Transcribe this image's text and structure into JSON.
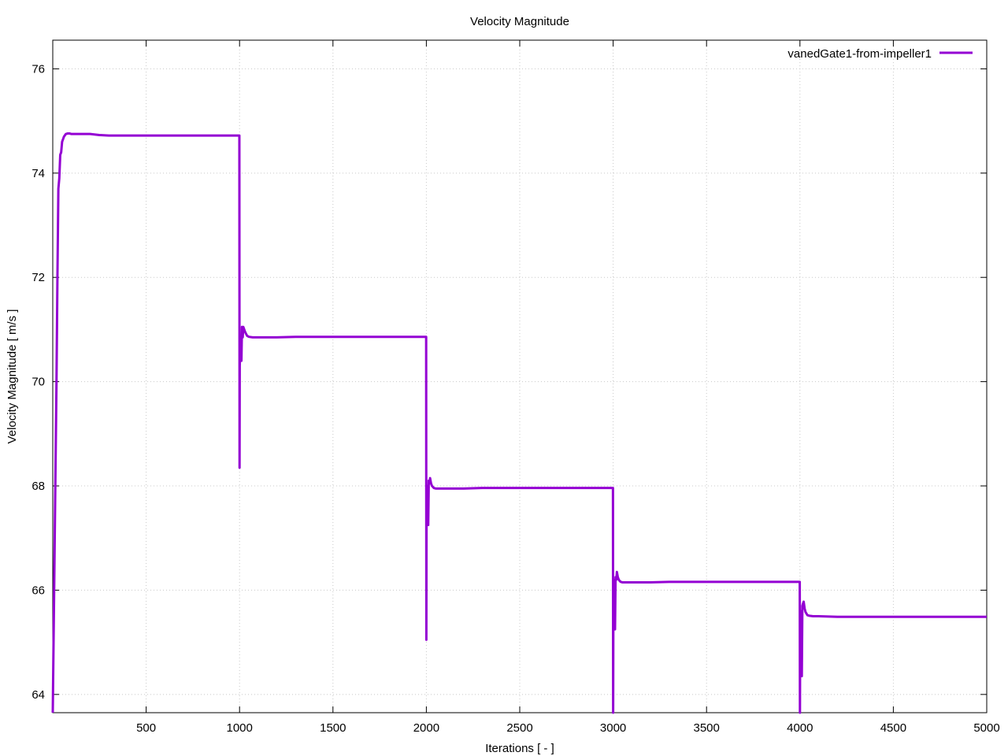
{
  "chart_data": {
    "type": "line",
    "title": "Velocity Magnitude",
    "xlabel": "Iterations [ - ]",
    "ylabel": "Velocity Magnitude [ m/s ]",
    "xlim": [
      0,
      5000
    ],
    "ylim": [
      63.65,
      76.55
    ],
    "xticks": [
      500,
      1000,
      1500,
      2000,
      2500,
      3000,
      3500,
      4000,
      4500,
      5000
    ],
    "yticks": [
      64,
      66,
      68,
      70,
      72,
      74,
      76
    ],
    "grid": true,
    "legend_position": "top-right",
    "colors": {
      "series": "#9400d3",
      "grid": "#c8c8c8",
      "axis": "#000000"
    },
    "series": [
      {
        "name": "vanedGate1-from-impeller1",
        "x": [
          0,
          20,
          25,
          30,
          35,
          40,
          45,
          50,
          55,
          60,
          70,
          80,
          90,
          100,
          120,
          150,
          200,
          250,
          300,
          400,
          500,
          600,
          700,
          800,
          900,
          999,
          1000,
          1001,
          1005,
          1010,
          1013,
          1017,
          1020,
          1025,
          1030,
          1040,
          1050,
          1070,
          1100,
          1200,
          1300,
          1400,
          1500,
          1600,
          1700,
          1800,
          1900,
          1999,
          2000,
          2001,
          2005,
          2010,
          2013,
          2017,
          2020,
          2025,
          2030,
          2040,
          2050,
          2070,
          2100,
          2200,
          2300,
          2400,
          2500,
          2600,
          2700,
          2800,
          2900,
          2999,
          3000,
          3001,
          3005,
          3010,
          3013,
          3017,
          3020,
          3025,
          3030,
          3040,
          3050,
          3070,
          3100,
          3200,
          3300,
          3400,
          3500,
          3600,
          3700,
          3800,
          3900,
          3999,
          4000,
          4001,
          4005,
          4010,
          4013,
          4017,
          4020,
          4025,
          4030,
          4040,
          4050,
          4070,
          4100,
          4200,
          4300,
          4400,
          4500,
          4600,
          4700,
          4800,
          4900,
          5000
        ],
        "y": [
          63.65,
          70.0,
          72.0,
          73.7,
          73.9,
          74.35,
          74.4,
          74.6,
          74.65,
          74.7,
          74.75,
          74.76,
          74.76,
          74.75,
          74.75,
          74.75,
          74.75,
          74.73,
          74.72,
          74.72,
          74.72,
          74.72,
          74.72,
          74.72,
          74.72,
          74.72,
          68.35,
          70.3,
          70.8,
          70.4,
          71.05,
          70.85,
          71.05,
          71.0,
          70.95,
          70.88,
          70.86,
          70.85,
          70.85,
          70.85,
          70.86,
          70.86,
          70.86,
          70.86,
          70.86,
          70.86,
          70.86,
          70.86,
          65.05,
          67.4,
          68.0,
          67.25,
          68.1,
          68.05,
          68.15,
          68.05,
          68.0,
          67.96,
          67.95,
          67.95,
          67.95,
          67.95,
          67.96,
          67.96,
          67.96,
          67.96,
          67.96,
          67.96,
          67.96,
          67.96,
          63.65,
          65.5,
          66.2,
          65.25,
          66.25,
          66.2,
          66.35,
          66.25,
          66.2,
          66.16,
          66.15,
          66.15,
          66.15,
          66.15,
          66.16,
          66.16,
          66.16,
          66.16,
          66.16,
          66.16,
          66.16,
          66.16,
          63.65,
          64.9,
          65.6,
          64.35,
          65.7,
          65.75,
          65.78,
          65.65,
          65.58,
          65.52,
          65.51,
          65.5,
          65.5,
          65.49,
          65.49,
          65.49,
          65.49,
          65.49,
          65.49,
          65.49,
          65.49,
          65.49
        ]
      }
    ]
  }
}
